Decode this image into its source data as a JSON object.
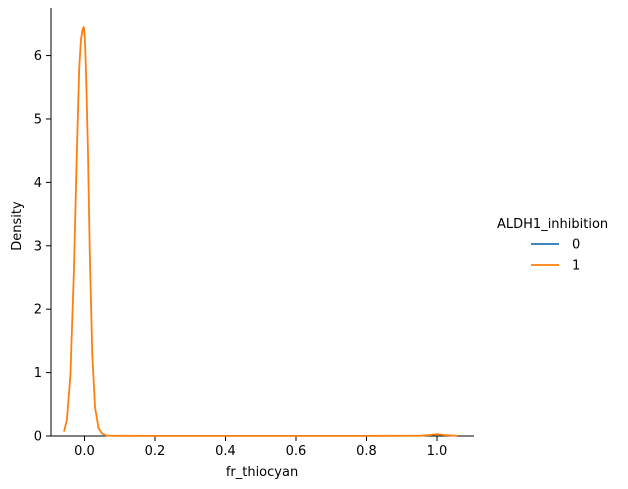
{
  "chart_data": {
    "type": "line",
    "title": "",
    "xlabel": "fr_thiocyan",
    "ylabel": "Density",
    "xlim": [
      -0.095,
      1.105
    ],
    "ylim": [
      0,
      6.75
    ],
    "x_ticks": [
      0.0,
      0.2,
      0.4,
      0.6,
      0.8,
      1.0
    ],
    "x_tick_labels": [
      "0.0",
      "0.2",
      "0.4",
      "0.6",
      "0.8",
      "1.0"
    ],
    "y_ticks": [
      0,
      1,
      2,
      3,
      4,
      5,
      6
    ],
    "y_tick_labels": [
      "0",
      "1",
      "2",
      "3",
      "4",
      "5",
      "6"
    ],
    "grid": false,
    "legend": {
      "title": "ALDH1_inhibition",
      "placement": "right",
      "entries": [
        {
          "label": "0",
          "color": "#1f77b4"
        },
        {
          "label": "1",
          "color": "#ff7f0e"
        }
      ]
    },
    "series": [
      {
        "name": "0",
        "color": "#1f77b4",
        "x": [],
        "y": []
      },
      {
        "name": "1",
        "color": "#ff7f0e",
        "x": [
          -0.058,
          -0.05,
          -0.04,
          -0.03,
          -0.022,
          -0.015,
          -0.01,
          -0.005,
          -0.002,
          0.0,
          0.002,
          0.005,
          0.01,
          0.015,
          0.022,
          0.03,
          0.04,
          0.05,
          0.06,
          0.07,
          0.1,
          0.2,
          0.4,
          0.6,
          0.8,
          0.95,
          0.98,
          1.0,
          1.02,
          1.058
        ],
        "y": [
          0.07,
          0.25,
          0.95,
          2.6,
          4.4,
          5.8,
          6.25,
          6.42,
          6.45,
          6.35,
          6.15,
          5.6,
          4.45,
          2.9,
          1.3,
          0.45,
          0.12,
          0.04,
          0.01,
          0.005,
          0.003,
          0.002,
          0.002,
          0.002,
          0.002,
          0.004,
          0.015,
          0.03,
          0.015,
          0.002
        ]
      }
    ]
  }
}
